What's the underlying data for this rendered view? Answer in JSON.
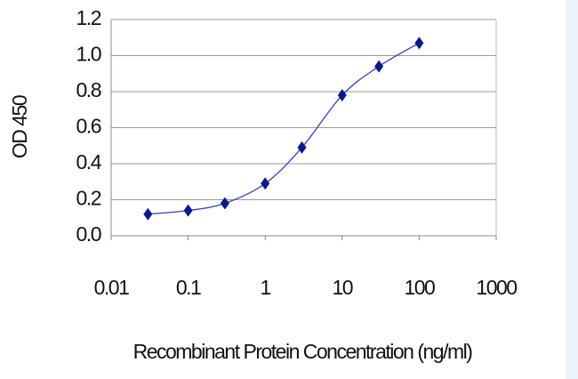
{
  "chart_data": {
    "type": "line",
    "xlabel": "Recombinant Protein Concentration (ng/ml)",
    "ylabel": "OD 450",
    "x": [
      0.03,
      0.1,
      0.3,
      1,
      3,
      10,
      30,
      100
    ],
    "values": [
      0.12,
      0.14,
      0.18,
      0.29,
      0.49,
      0.78,
      0.94,
      1.07
    ],
    "color": "#3a3acc",
    "marker_color": "#0a1a8a",
    "xscale": "log",
    "xlim": [
      0.01,
      1000
    ],
    "xticks": [
      0.01,
      0.1,
      1,
      10,
      100,
      1000
    ],
    "ylim": [
      0,
      1.2
    ],
    "yticks": [
      {
        "value": 0,
        "label": "0.0"
      },
      0.2,
      0.4,
      0.6,
      0.8,
      {
        "value": 1,
        "label": "1.0"
      },
      1.2
    ],
    "grid": true
  }
}
